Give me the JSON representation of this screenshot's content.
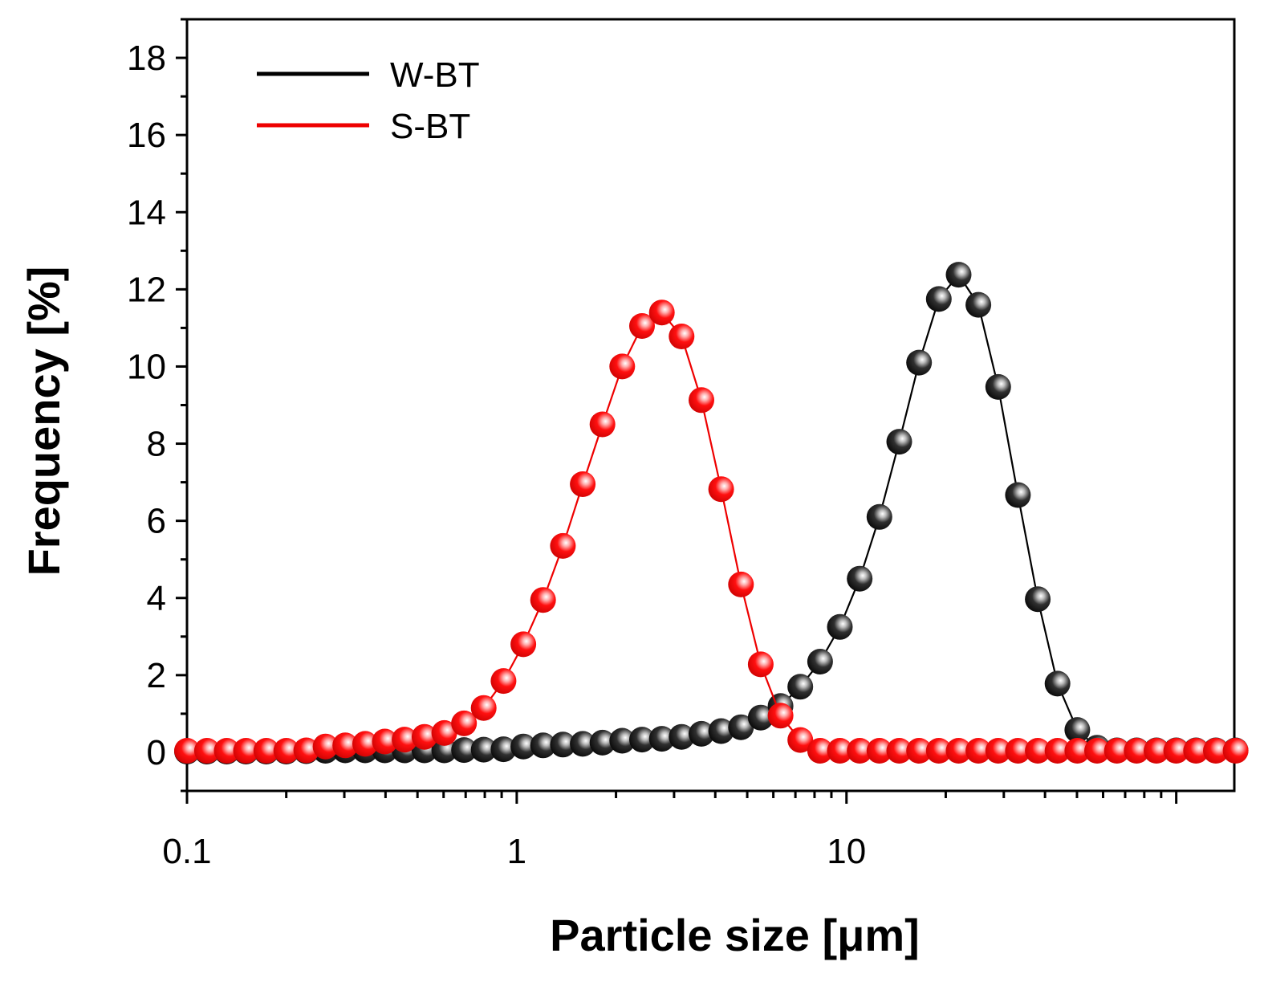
{
  "chart_data": {
    "type": "line",
    "title": "",
    "xlabel": "Particle size [μm]",
    "ylabel": "Frequency [%]",
    "x_scale": "log",
    "xlim": [
      0.1,
      150
    ],
    "ylim": [
      -1,
      19
    ],
    "x_ticks": [
      0.1,
      1,
      10
    ],
    "x_tick_labels": [
      "0.1",
      "1",
      "10"
    ],
    "y_ticks": [
      0,
      2,
      4,
      6,
      8,
      10,
      12,
      14,
      16,
      18
    ],
    "y_tick_labels": [
      "0",
      "2",
      "4",
      "6",
      "8",
      "10",
      "12",
      "14",
      "16",
      "18"
    ],
    "grid": false,
    "legend_position": "top-left",
    "series": [
      {
        "name": "W-BT",
        "color": "#000000",
        "x": [
          0.1,
          0.115,
          0.132,
          0.151,
          0.174,
          0.2,
          0.23,
          0.263,
          0.302,
          0.347,
          0.398,
          0.457,
          0.525,
          0.603,
          0.692,
          0.794,
          0.912,
          1.047,
          1.202,
          1.38,
          1.585,
          1.82,
          2.089,
          2.399,
          2.754,
          3.162,
          3.631,
          4.169,
          4.786,
          5.495,
          6.31,
          7.244,
          8.318,
          9.55,
          10.965,
          12.589,
          14.454,
          16.596,
          19.055,
          21.878,
          25.119,
          28.84,
          33.113,
          38.019,
          43.652,
          50.119,
          57.544,
          66.069,
          75.858,
          87.096,
          100,
          114.815,
          131.826,
          151.356
        ],
        "values": [
          0.02,
          0.02,
          0.02,
          0.02,
          0.02,
          0.02,
          0.03,
          0.04,
          0.05,
          0.05,
          0.05,
          0.05,
          0.05,
          0.05,
          0.06,
          0.07,
          0.08,
          0.15,
          0.18,
          0.2,
          0.22,
          0.25,
          0.3,
          0.33,
          0.35,
          0.4,
          0.48,
          0.55,
          0.65,
          0.9,
          1.2,
          1.7,
          2.35,
          3.25,
          4.5,
          6.1,
          8.05,
          10.1,
          11.75,
          12.38,
          11.6,
          9.47,
          6.67,
          3.97,
          1.78,
          0.58,
          0.12,
          0.05,
          0.05,
          0.05,
          0.05,
          0.05,
          0.05,
          0.05
        ]
      },
      {
        "name": "S-BT",
        "color": "#ee0000",
        "x": [
          0.1,
          0.115,
          0.132,
          0.151,
          0.174,
          0.2,
          0.23,
          0.263,
          0.302,
          0.347,
          0.398,
          0.457,
          0.525,
          0.603,
          0.692,
          0.794,
          0.912,
          1.047,
          1.202,
          1.38,
          1.585,
          1.82,
          2.089,
          2.399,
          2.754,
          3.162,
          3.631,
          4.169,
          4.786,
          5.495,
          6.31,
          7.244,
          8.318,
          9.55,
          10.965,
          12.589,
          14.454,
          16.596,
          19.055,
          21.878,
          25.119,
          28.84,
          33.113,
          38.019,
          43.652,
          50.119,
          57.544,
          66.069,
          75.858,
          87.096,
          100,
          114.815,
          131.826,
          151.356
        ],
        "values": [
          0.04,
          0.04,
          0.04,
          0.04,
          0.04,
          0.04,
          0.05,
          0.15,
          0.18,
          0.22,
          0.28,
          0.33,
          0.4,
          0.5,
          0.75,
          1.15,
          1.85,
          2.8,
          3.95,
          5.35,
          6.95,
          8.5,
          10.0,
          11.05,
          11.4,
          10.78,
          9.13,
          6.82,
          4.35,
          2.28,
          0.95,
          0.32,
          0.04,
          0.04,
          0.04,
          0.04,
          0.04,
          0.04,
          0.04,
          0.04,
          0.04,
          0.04,
          0.04,
          0.04,
          0.04,
          0.04,
          0.04,
          0.04,
          0.04,
          0.04,
          0.04,
          0.04,
          0.04,
          0.04
        ]
      }
    ]
  }
}
